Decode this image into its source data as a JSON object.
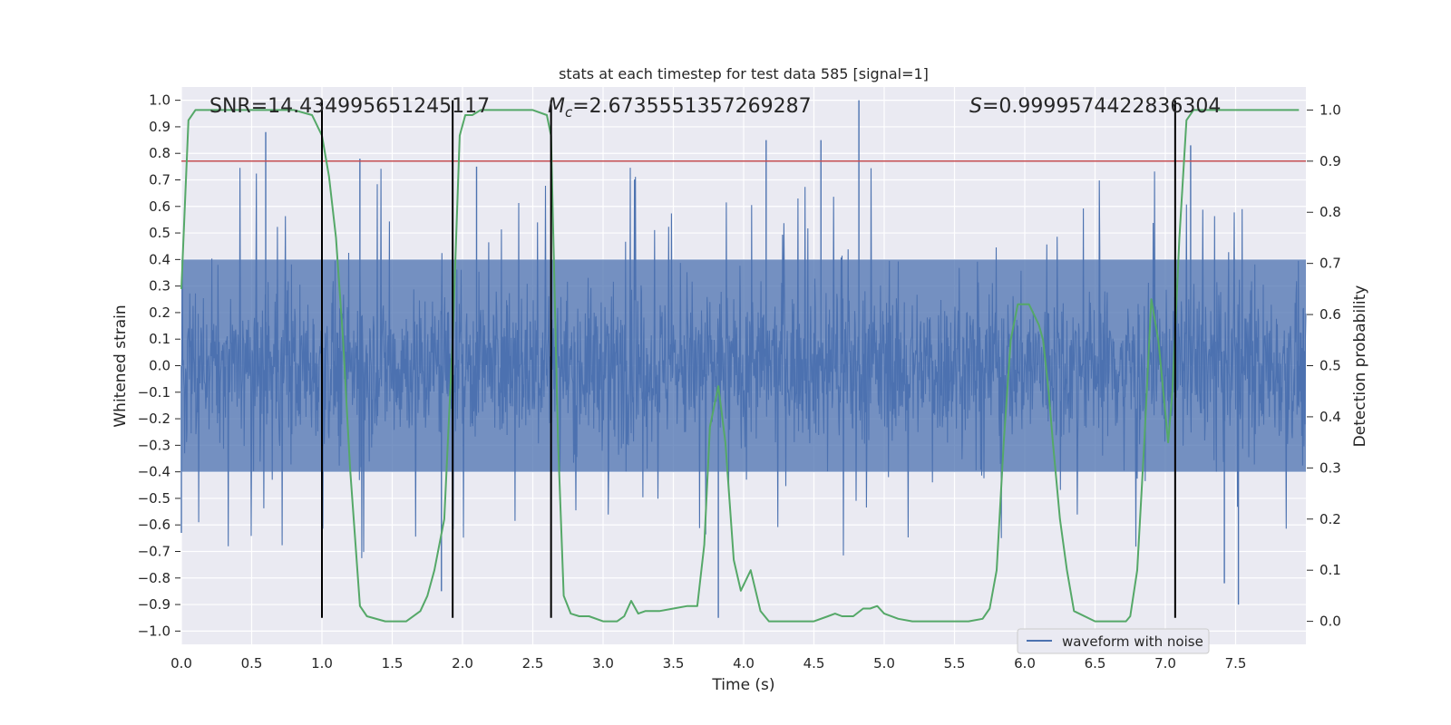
{
  "chart_data": {
    "type": "line",
    "title": "stats at each timestep for test data 585 [signal=1]",
    "xlabel": "Time (s)",
    "ylabel": "Whitened strain",
    "ylabel_right": "Detection probability",
    "xlim": [
      0,
      8
    ],
    "ylim": [
      -1.05,
      1.05
    ],
    "ylim_right": [
      -0.045,
      1.045
    ],
    "x_ticks": [
      "0.0",
      "0.5",
      "1.0",
      "1.5",
      "2.0",
      "2.5",
      "3.0",
      "3.5",
      "4.0",
      "4.5",
      "5.0",
      "5.5",
      "6.0",
      "6.5",
      "7.0",
      "7.5"
    ],
    "y_ticks": [
      "1.0",
      "0.9",
      "0.8",
      "0.7",
      "0.6",
      "0.5",
      "0.4",
      "0.3",
      "0.2",
      "0.1",
      "0.0",
      "−0.1",
      "−0.2",
      "−0.3",
      "−0.4",
      "−0.5",
      "−0.6",
      "−0.7",
      "−0.8",
      "−0.9",
      "−1.0"
    ],
    "y_ticks_right": [
      "1.0",
      "0.9",
      "0.8",
      "0.7",
      "0.6",
      "0.5",
      "0.4",
      "0.3",
      "0.2",
      "0.1",
      "0.0"
    ],
    "grid": true,
    "legend": {
      "position": "bottom-right",
      "entries": [
        "waveform with noise"
      ]
    },
    "annotations": {
      "snr": "SNR=14.434995651245117",
      "mc_symbol": "M",
      "mc_sub": "c",
      "mc_value": "=2.6735551357269287",
      "s_symbol": "S",
      "s_value": "=0.9999574422836304"
    },
    "waveform": {
      "name": "waveform with noise",
      "color": "#4c72b0",
      "x_range": [
        0,
        8
      ],
      "band_quantiles": {
        "p_low": -0.4,
        "p_high": 0.4
      },
      "peaks": [
        {
          "x": 0.6,
          "y": 0.88
        },
        {
          "x": 4.82,
          "y": 1.0
        },
        {
          "x": 3.82,
          "y": -0.95
        },
        {
          "x": 1.27,
          "y": 0.78
        },
        {
          "x": 2.1,
          "y": 0.75
        },
        {
          "x": 4.16,
          "y": 0.85
        },
        {
          "x": 4.55,
          "y": 0.85
        },
        {
          "x": 7.18,
          "y": 0.83
        },
        {
          "x": 7.52,
          "y": -0.9
        },
        {
          "x": 7.42,
          "y": -0.82
        },
        {
          "x": 0.0,
          "y": -0.63
        },
        {
          "x": 1.85,
          "y": -0.85
        }
      ]
    },
    "probability": {
      "name": "detection probability",
      "color": "#55a868",
      "x": [
        0.0,
        0.05,
        0.1,
        0.2,
        0.5,
        0.8,
        0.93,
        1.0,
        1.05,
        1.1,
        1.15,
        1.2,
        1.27,
        1.32,
        1.45,
        1.6,
        1.7,
        1.75,
        1.8,
        1.87,
        1.93,
        1.98,
        2.02,
        2.07,
        2.13,
        2.2,
        2.3,
        2.5,
        2.6,
        2.63,
        2.68,
        2.72,
        2.77,
        2.83,
        2.9,
        3.0,
        3.1,
        3.15,
        3.2,
        3.25,
        3.3,
        3.4,
        3.5,
        3.6,
        3.67,
        3.72,
        3.76,
        3.82,
        3.87,
        3.93,
        3.98,
        4.05,
        4.12,
        4.18,
        4.25,
        4.35,
        4.5,
        4.6,
        4.65,
        4.7,
        4.78,
        4.85,
        4.9,
        4.95,
        5.0,
        5.1,
        5.2,
        5.4,
        5.6,
        5.7,
        5.75,
        5.8,
        5.85,
        5.9,
        5.95,
        6.03,
        6.1,
        6.13,
        6.17,
        6.2,
        6.25,
        6.3,
        6.35,
        6.5,
        6.65,
        6.72,
        6.75,
        6.8,
        6.85,
        6.9,
        6.95,
        7.02,
        7.05,
        7.1,
        7.15,
        7.2,
        7.3,
        7.5,
        7.95
      ],
      "y": [
        0.65,
        0.98,
        1.0,
        1.0,
        1.0,
        1.0,
        0.99,
        0.95,
        0.87,
        0.75,
        0.55,
        0.3,
        0.03,
        0.01,
        0.0,
        0.0,
        0.02,
        0.05,
        0.1,
        0.2,
        0.55,
        0.95,
        0.99,
        0.99,
        1.0,
        1.0,
        1.0,
        1.0,
        0.99,
        0.95,
        0.35,
        0.05,
        0.015,
        0.01,
        0.01,
        0.0,
        0.0,
        0.01,
        0.04,
        0.015,
        0.02,
        0.02,
        0.025,
        0.03,
        0.03,
        0.15,
        0.38,
        0.46,
        0.35,
        0.12,
        0.06,
        0.1,
        0.02,
        0.0,
        0.0,
        0.0,
        0.0,
        0.01,
        0.015,
        0.01,
        0.01,
        0.025,
        0.025,
        0.03,
        0.015,
        0.005,
        0.0,
        0.0,
        0.0,
        0.005,
        0.025,
        0.1,
        0.35,
        0.55,
        0.62,
        0.62,
        0.58,
        0.55,
        0.45,
        0.35,
        0.2,
        0.1,
        0.02,
        0.0,
        0.0,
        0.0,
        0.01,
        0.1,
        0.35,
        0.63,
        0.55,
        0.35,
        0.45,
        0.75,
        0.98,
        1.0,
        1.0,
        1.0,
        1.0
      ]
    },
    "threshold": {
      "value": 0.9,
      "axis": "right",
      "color": "#c44e52"
    },
    "vlines": {
      "x": [
        1.0,
        1.93,
        2.63,
        7.07
      ],
      "ymin": -0.95,
      "ymax": 1.0,
      "color": "#000000"
    },
    "colors": {
      "background": "#eaeaf2",
      "grid": "#ffffff",
      "text": "#262626"
    }
  }
}
